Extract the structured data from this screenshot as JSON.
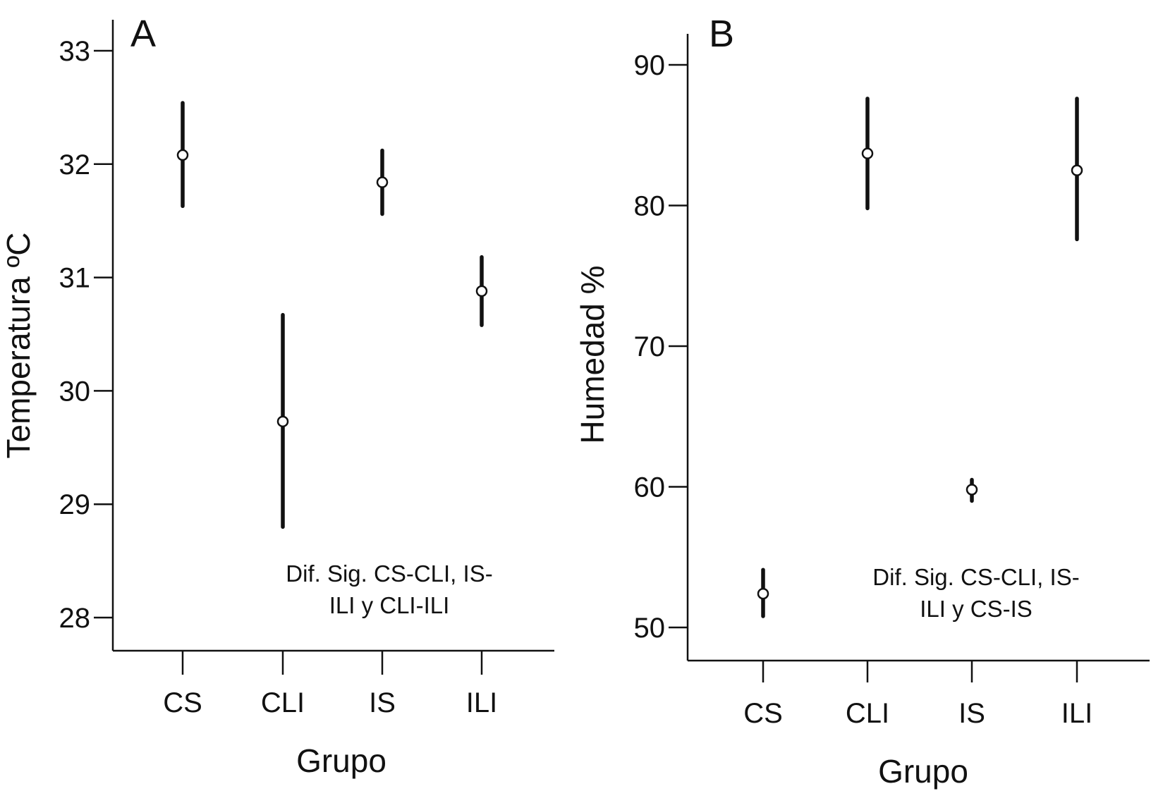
{
  "chart_data": [
    {
      "panel_label": "A",
      "type": "scatter",
      "title": "",
      "xlabel": "Grupo",
      "ylabel": "Temperatura ºC",
      "categories": [
        "CS",
        "CLI",
        "IS",
        "ILI"
      ],
      "ylim": [
        27.7,
        33.3
      ],
      "yticks": [
        28,
        29,
        30,
        31,
        32,
        33
      ],
      "ytick_labels": [
        "28",
        "29",
        "30",
        "31",
        "32",
        "33"
      ],
      "means": [
        32.08,
        29.73,
        31.84,
        30.88
      ],
      "lower": [
        31.63,
        28.8,
        31.56,
        30.58
      ],
      "upper": [
        32.54,
        30.67,
        32.12,
        31.18
      ],
      "annotation": [
        "Dif. Sig. CS-CLI, IS-",
        "ILI y CLI-ILI"
      ],
      "grid": false,
      "legend": "none"
    },
    {
      "panel_label": "B",
      "type": "scatter",
      "title": "",
      "xlabel": "Grupo",
      "ylabel": "Humedad %",
      "categories": [
        "CS",
        "CLI",
        "IS",
        "ILI"
      ],
      "ylim": [
        47.8,
        92.2
      ],
      "yticks": [
        50,
        60,
        70,
        80,
        90
      ],
      "ytick_labels": [
        "50",
        "60",
        "70",
        "80",
        "90"
      ],
      "means": [
        52.4,
        83.7,
        59.8,
        82.5
      ],
      "lower": [
        50.8,
        79.8,
        59.0,
        77.6
      ],
      "upper": [
        54.1,
        87.6,
        60.5,
        87.6
      ],
      "annotation": [
        "Dif. Sig. CS-CLI, IS-",
        "ILI y CS-IS"
      ],
      "grid": false,
      "legend": "none"
    }
  ]
}
